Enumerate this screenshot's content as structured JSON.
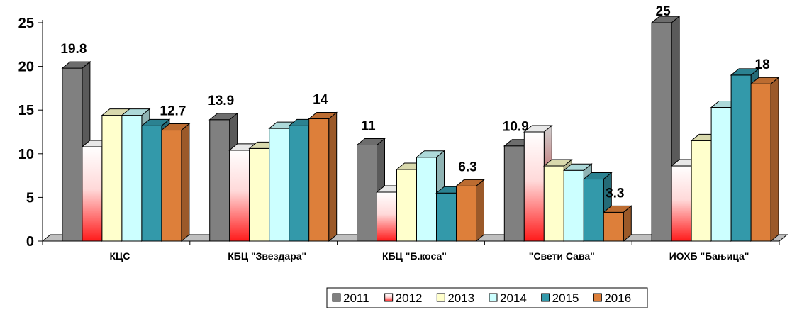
{
  "chart_data": {
    "type": "bar",
    "categories": [
      "КЦС",
      "КБЦ \"Звездара\"",
      "КБЦ \"Б.коса\"",
      "\"Свети Сава\"",
      "ИОХБ \"Бањица\""
    ],
    "series": [
      {
        "name": "2011",
        "values": [
          19.8,
          13.9,
          11,
          10.9,
          25
        ]
      },
      {
        "name": "2012",
        "values": [
          10.8,
          10.4,
          5.6,
          12.5,
          8.6
        ]
      },
      {
        "name": "2013",
        "values": [
          14.4,
          10.6,
          8.2,
          8.6,
          11.5
        ]
      },
      {
        "name": "2014",
        "values": [
          14.4,
          12.9,
          9.6,
          8.1,
          15.3
        ]
      },
      {
        "name": "2015",
        "values": [
          13.2,
          13.2,
          5.5,
          7.1,
          19
        ]
      },
      {
        "name": "2016",
        "values": [
          12.7,
          14,
          6.3,
          3.3,
          18
        ]
      }
    ],
    "data_labels": [
      {
        "category_index": 0,
        "series_index": 0,
        "text": "19.8"
      },
      {
        "category_index": 0,
        "series_index": 5,
        "text": "12.7"
      },
      {
        "category_index": 1,
        "series_index": 0,
        "text": "13.9"
      },
      {
        "category_index": 1,
        "series_index": 5,
        "text": "14"
      },
      {
        "category_index": 2,
        "series_index": 0,
        "text": "11"
      },
      {
        "category_index": 2,
        "series_index": 5,
        "text": "6.3"
      },
      {
        "category_index": 3,
        "series_index": 0,
        "text": "10.9"
      },
      {
        "category_index": 3,
        "series_index": 5,
        "text": "3.3"
      },
      {
        "category_index": 4,
        "series_index": 0,
        "text": "25"
      },
      {
        "category_index": 4,
        "series_index": 5,
        "text": "18"
      }
    ],
    "title": "",
    "xlabel": "",
    "ylabel": "",
    "ylim": [
      0,
      25
    ],
    "yticks": [
      0,
      5,
      10,
      15,
      20,
      25
    ],
    "grid": false,
    "legend": "bottom-right",
    "colors": {
      "2011": "#808080",
      "2012": "#ff2020",
      "2013": "#ffffcc",
      "2014": "#ccffff",
      "2015": "#3399aa",
      "2016": "#dd7f3a"
    }
  }
}
